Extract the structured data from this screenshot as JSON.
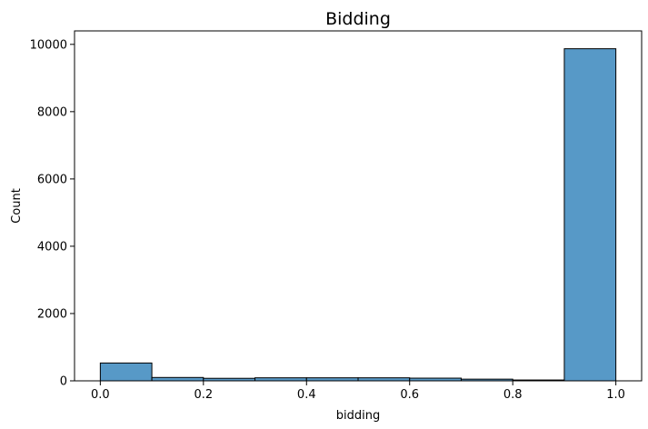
{
  "chart_data": {
    "type": "bar",
    "subtype": "histogram",
    "title": "Bidding",
    "xlabel": "bidding",
    "ylabel": "Count",
    "bin_edges": [
      0.0,
      0.1,
      0.2,
      0.3,
      0.4,
      0.5,
      0.6,
      0.7,
      0.8,
      0.9,
      1.0
    ],
    "values": [
      530,
      100,
      75,
      90,
      90,
      90,
      80,
      50,
      25,
      9870
    ],
    "xlim": [
      -0.05,
      1.05
    ],
    "ylim": [
      0,
      10400
    ],
    "xticks": [
      0.0,
      0.2,
      0.4,
      0.6,
      0.8,
      1.0
    ],
    "xtick_labels": [
      "0.0",
      "0.2",
      "0.4",
      "0.6",
      "0.8",
      "1.0"
    ],
    "yticks": [
      0,
      2000,
      4000,
      6000,
      8000,
      10000
    ],
    "ytick_labels": [
      "0",
      "2000",
      "4000",
      "6000",
      "8000",
      "10000"
    ],
    "grid": false,
    "legend": "none",
    "bar_color": "#5799c7",
    "edge_color": "#000000"
  }
}
